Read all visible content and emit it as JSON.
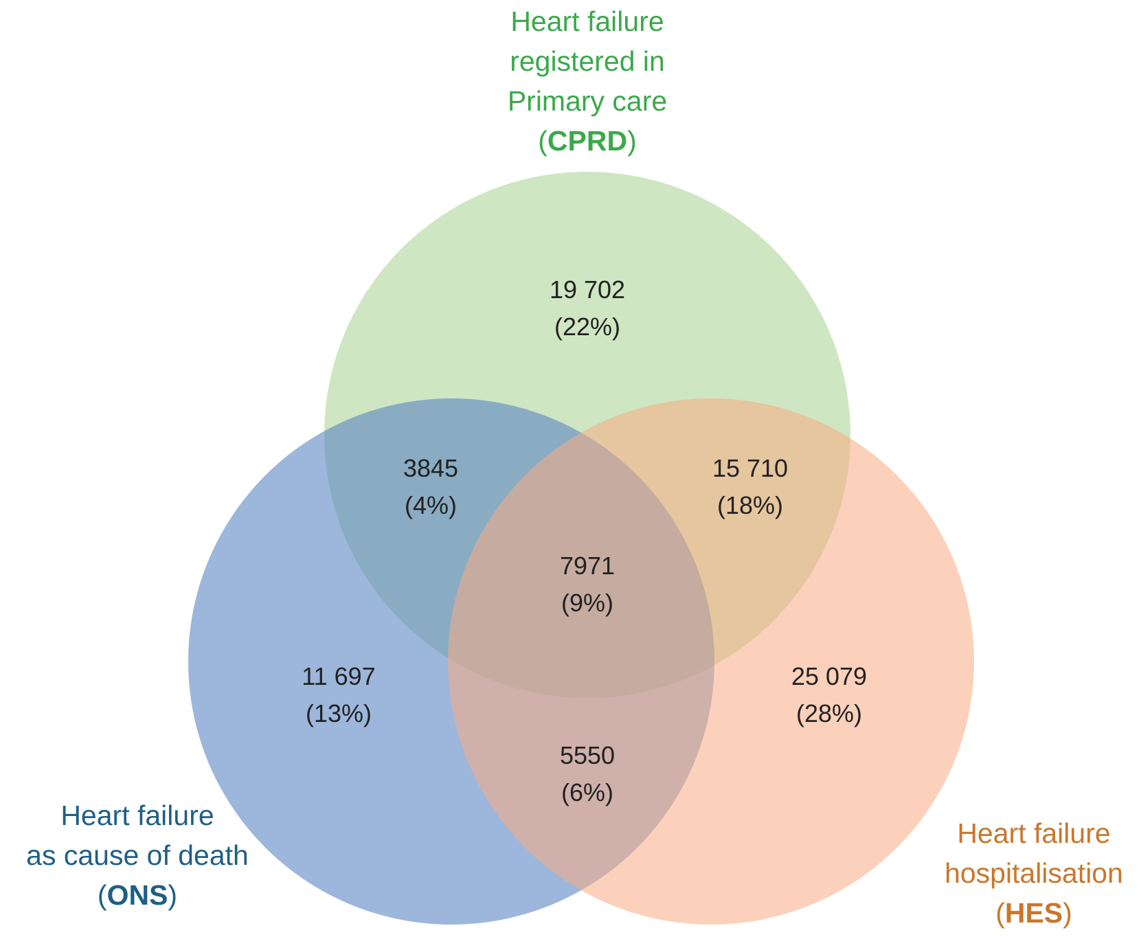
{
  "sets": {
    "cprd": {
      "line1": "Heart failure",
      "line2": "registered in",
      "line3": "Primary care",
      "abbr": "CPRD",
      "label_color": "#3aa94a",
      "fill_color": "#a7d18f"
    },
    "ons": {
      "line1": "Heart failure",
      "line2": "as cause of death",
      "abbr": "ONS",
      "label_color": "#1f5f86",
      "fill_color": "#5b86c3"
    },
    "hes": {
      "line1": "Heart failure",
      "line2": "hospitalisation",
      "abbr": "HES",
      "label_color": "#c9772b",
      "fill_color": "#f7ab83"
    }
  },
  "regions": {
    "cprd_only": {
      "count": "19 702",
      "pct": "(22%)"
    },
    "cprd_ons": {
      "count": "3845",
      "pct": "(4%)"
    },
    "cprd_hes": {
      "count": "15 710",
      "pct": "(18%)"
    },
    "all_three": {
      "count": "7971",
      "pct": "(9%)"
    },
    "ons_only": {
      "count": "11 697",
      "pct": "(13%)"
    },
    "hes_only": {
      "count": "25 079",
      "pct": "(28%)"
    },
    "ons_hes": {
      "count": "5550",
      "pct": "(6%)"
    }
  }
}
